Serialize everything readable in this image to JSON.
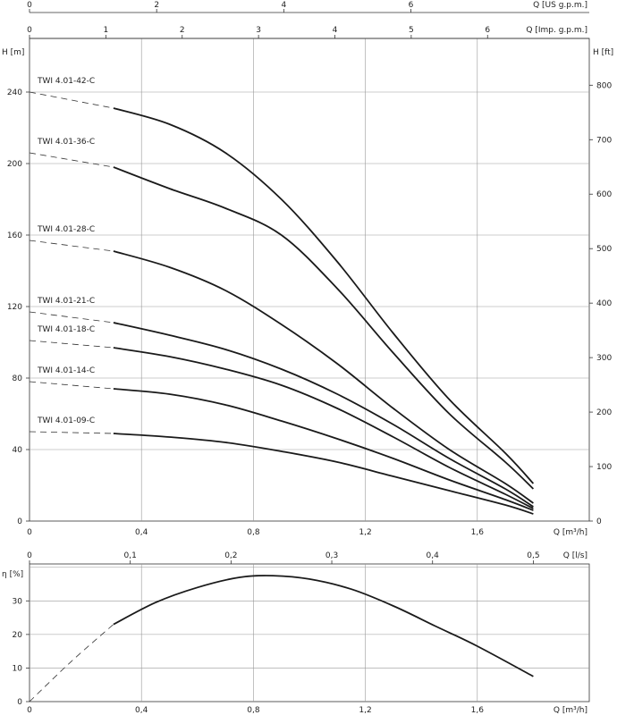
{
  "chart_data": [
    {
      "type": "line",
      "title": "",
      "xlabel": "Q [m³/h]",
      "ylabel": "H [m]",
      "ylabel_right": "H [ft]",
      "xlim": [
        0,
        2.0
      ],
      "ylim": [
        0,
        270
      ],
      "x_ticks": [
        0,
        0.4,
        0.8,
        1.2,
        1.6
      ],
      "x_tick_labels": [
        "0",
        "0,4",
        "0,8",
        "1,2",
        "1,6"
      ],
      "y_ticks": [
        0,
        40,
        80,
        120,
        160,
        200,
        240
      ],
      "y_ticks_right": [
        0,
        100,
        200,
        300,
        400,
        500,
        600,
        700,
        800
      ],
      "x_ticks_lps": [
        0,
        0.1,
        0.2,
        0.3,
        0.4,
        0.5
      ],
      "x_tick_labels_lps": [
        "0",
        "0,1",
        "0,2",
        "0,3",
        "0,4",
        "0,5"
      ],
      "x_unit_lps": "Q [l/s]",
      "x_ticks_us": [
        0,
        2,
        4,
        6
      ],
      "x_unit_us": "Q [US g.p.m.]",
      "x_ticks_imp": [
        0,
        1,
        2,
        3,
        4,
        5,
        6
      ],
      "x_unit_imp": "Q [Imp. g.p.m.]",
      "grid": true,
      "series": [
        {
          "name": "TWI 4.01-42-C",
          "x": [
            0.3,
            0.5,
            0.7,
            0.9,
            1.1,
            1.3,
            1.5,
            1.7,
            1.8
          ],
          "y": [
            231,
            222,
            206,
            180,
            145,
            105,
            68,
            38,
            21
          ]
        },
        {
          "name": "TWI 4.01-36-C",
          "x": [
            0.3,
            0.5,
            0.7,
            0.9,
            1.1,
            1.3,
            1.5,
            1.7,
            1.8
          ],
          "y": [
            198,
            186,
            175,
            160,
            130,
            94,
            60,
            33,
            18
          ]
        },
        {
          "name": "TWI 4.01-28-C",
          "x": [
            0.3,
            0.5,
            0.7,
            0.9,
            1.1,
            1.3,
            1.5,
            1.7,
            1.8
          ],
          "y": [
            151,
            142,
            129,
            110,
            88,
            63,
            40,
            21,
            10
          ]
        },
        {
          "name": "TWI 4.01-21-C",
          "x": [
            0.3,
            0.5,
            0.7,
            0.9,
            1.1,
            1.3,
            1.5,
            1.7,
            1.8
          ],
          "y": [
            111,
            104,
            96,
            85,
            71,
            54,
            35,
            18,
            8
          ]
        },
        {
          "name": "TWI 4.01-18-C",
          "x": [
            0.3,
            0.5,
            0.7,
            0.9,
            1.1,
            1.3,
            1.5,
            1.7,
            1.8
          ],
          "y": [
            97,
            92,
            85,
            76,
            63,
            47,
            30,
            15,
            7
          ]
        },
        {
          "name": "TWI 4.01-14-C",
          "x": [
            0.3,
            0.5,
            0.7,
            0.9,
            1.1,
            1.3,
            1.5,
            1.7,
            1.8
          ],
          "y": [
            74,
            71,
            65,
            56,
            46,
            35,
            23,
            12,
            6
          ]
        },
        {
          "name": "TWI 4.01-09-C",
          "x": [
            0.3,
            0.5,
            0.7,
            0.9,
            1.1,
            1.3,
            1.5,
            1.7,
            1.8
          ],
          "y": [
            49,
            47,
            44,
            39,
            33,
            25,
            17,
            9,
            4
          ]
        }
      ],
      "extrapolated_H_at_zero_flow": [
        240,
        206,
        157,
        117,
        101,
        78,
        50
      ]
    },
    {
      "type": "line",
      "title": "",
      "xlabel": "Q [m³/h]",
      "ylabel": "η [%]",
      "xlim": [
        0,
        2.0
      ],
      "ylim": [
        0,
        41
      ],
      "x_ticks": [
        0,
        0.4,
        0.8,
        1.2,
        1.6
      ],
      "x_tick_labels": [
        "0",
        "0,4",
        "0,8",
        "1,2",
        "1,6"
      ],
      "y_ticks": [
        0,
        10,
        20,
        30
      ],
      "grid": true,
      "series": [
        {
          "name": "",
          "x": [
            0.3,
            0.45,
            0.6,
            0.75,
            0.87,
            1.0,
            1.15,
            1.3,
            1.45,
            1.6,
            1.8
          ],
          "y": [
            23,
            29.5,
            34,
            37,
            37.5,
            36.5,
            33.5,
            28.5,
            22.5,
            16.5,
            7.5
          ]
        }
      ],
      "extrapolated": {
        "x": [
          0,
          0.15,
          0.3
        ],
        "y": [
          0,
          12,
          23
        ]
      }
    }
  ]
}
